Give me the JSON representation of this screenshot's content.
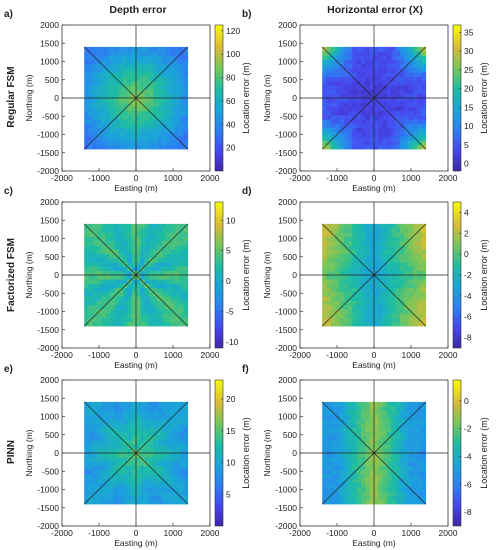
{
  "column_titles": [
    "Depth error",
    "Horizontal error (X)"
  ],
  "row_labels": [
    "Regular FSM",
    "Factorized FSM",
    "PINN"
  ],
  "chart_data": [
    {
      "type": "heatmap",
      "panel": "a)",
      "row": "Regular FSM",
      "column": "Depth error",
      "xlabel": "Easting (m)",
      "ylabel": "Northing (m)",
      "xlim": [
        -2000,
        2000
      ],
      "ylim": [
        -2000,
        2000
      ],
      "xticks": [
        -2000,
        -1000,
        0,
        1000,
        2000
      ],
      "yticks": [
        -2000,
        -1500,
        -1000,
        -500,
        0,
        500,
        1000,
        1500,
        2000
      ],
      "colorbar_label": "Location error (m)",
      "clim": [
        0,
        125
      ],
      "cticks": [
        20,
        40,
        60,
        80,
        100,
        120
      ],
      "pattern": "radial",
      "center_value": 95,
      "edge_value": 35,
      "data_extent": [
        -1400,
        1400
      ]
    },
    {
      "type": "heatmap",
      "panel": "b)",
      "row": "Regular FSM",
      "column": "Horizontal error (X)",
      "xlabel": "Easting (m)",
      "ylabel": "Northing (m)",
      "xlim": [
        -2000,
        2000
      ],
      "ylim": [
        -2000,
        2000
      ],
      "xticks": [
        -2000,
        -1000,
        0,
        1000,
        2000
      ],
      "yticks": [
        -2000,
        -1500,
        -1000,
        -500,
        0,
        500,
        1000,
        1500,
        2000
      ],
      "colorbar_label": "Location error (m)",
      "clim": [
        -2,
        37
      ],
      "cticks": [
        0,
        5,
        10,
        15,
        20,
        25,
        30,
        35
      ],
      "pattern": "corners",
      "center_value": 2,
      "edge_value": 25,
      "data_extent": [
        -1400,
        1400
      ]
    },
    {
      "type": "heatmap",
      "panel": "c)",
      "row": "Factorized FSM",
      "column": "Depth error",
      "xlabel": "Easting (m)",
      "ylabel": "Northing (m)",
      "xlim": [
        -2000,
        2000
      ],
      "ylim": [
        -2000,
        2000
      ],
      "xticks": [
        -2000,
        -1000,
        0,
        1000,
        2000
      ],
      "yticks": [
        -2000,
        -1500,
        -1000,
        -500,
        0,
        500,
        1000,
        1500,
        2000
      ],
      "colorbar_label": "Location error (m)",
      "clim": [
        -11,
        13
      ],
      "cticks": [
        -10,
        -5,
        0,
        5,
        10
      ],
      "pattern": "star",
      "center_value": 2,
      "edge_value": 4,
      "data_extent": [
        -1400,
        1400
      ]
    },
    {
      "type": "heatmap",
      "panel": "d)",
      "row": "Factorized FSM",
      "column": "Horizontal error (X)",
      "xlabel": "Easting (m)",
      "ylabel": "Northing (m)",
      "xlim": [
        -2000,
        2000
      ],
      "ylim": [
        -2000,
        2000
      ],
      "xticks": [
        -2000,
        -1000,
        0,
        1000,
        2000
      ],
      "yticks": [
        -2000,
        -1500,
        -1000,
        -500,
        0,
        500,
        1000,
        1500,
        2000
      ],
      "colorbar_label": "Location error (m)",
      "clim": [
        -9,
        5
      ],
      "cticks": [
        -8,
        -6,
        -4,
        -2,
        0,
        2,
        4
      ],
      "pattern": "bands",
      "center_value": -2,
      "edge_value": 2,
      "data_extent": [
        -1400,
        1400
      ]
    },
    {
      "type": "heatmap",
      "panel": "e)",
      "row": "PINN",
      "column": "Depth error",
      "xlabel": "Easting (m)",
      "ylabel": "Northing (m)",
      "xlim": [
        -2000,
        2000
      ],
      "ylim": [
        -2000,
        2000
      ],
      "xticks": [
        -2000,
        -1000,
        0,
        1000,
        2000
      ],
      "yticks": [
        -2000,
        -1500,
        -1000,
        -500,
        0,
        500,
        1000,
        1500,
        2000
      ],
      "colorbar_label": "Location error (m)",
      "clim": [
        0,
        23
      ],
      "cticks": [
        5,
        10,
        15,
        20
      ],
      "pattern": "rays",
      "center_value": 14,
      "edge_value": 8,
      "data_extent": [
        -1400,
        1400
      ]
    },
    {
      "type": "heatmap",
      "panel": "f)",
      "row": "PINN",
      "column": "Horizontal error (X)",
      "xlabel": "Easting (m)",
      "ylabel": "Northing (m)",
      "xlim": [
        -2000,
        2000
      ],
      "ylim": [
        -2000,
        2000
      ],
      "xticks": [
        -2000,
        -1000,
        0,
        1000,
        2000
      ],
      "yticks": [
        -2000,
        -1500,
        -1000,
        -500,
        0,
        500,
        1000,
        1500,
        2000
      ],
      "colorbar_label": "Location error (m)",
      "clim": [
        -9,
        1.5
      ],
      "cticks": [
        -8,
        -6,
        -4,
        -2,
        0
      ],
      "pattern": "vband",
      "center_value": -1,
      "edge_value": -5,
      "data_extent": [
        -1400,
        1400
      ]
    }
  ]
}
